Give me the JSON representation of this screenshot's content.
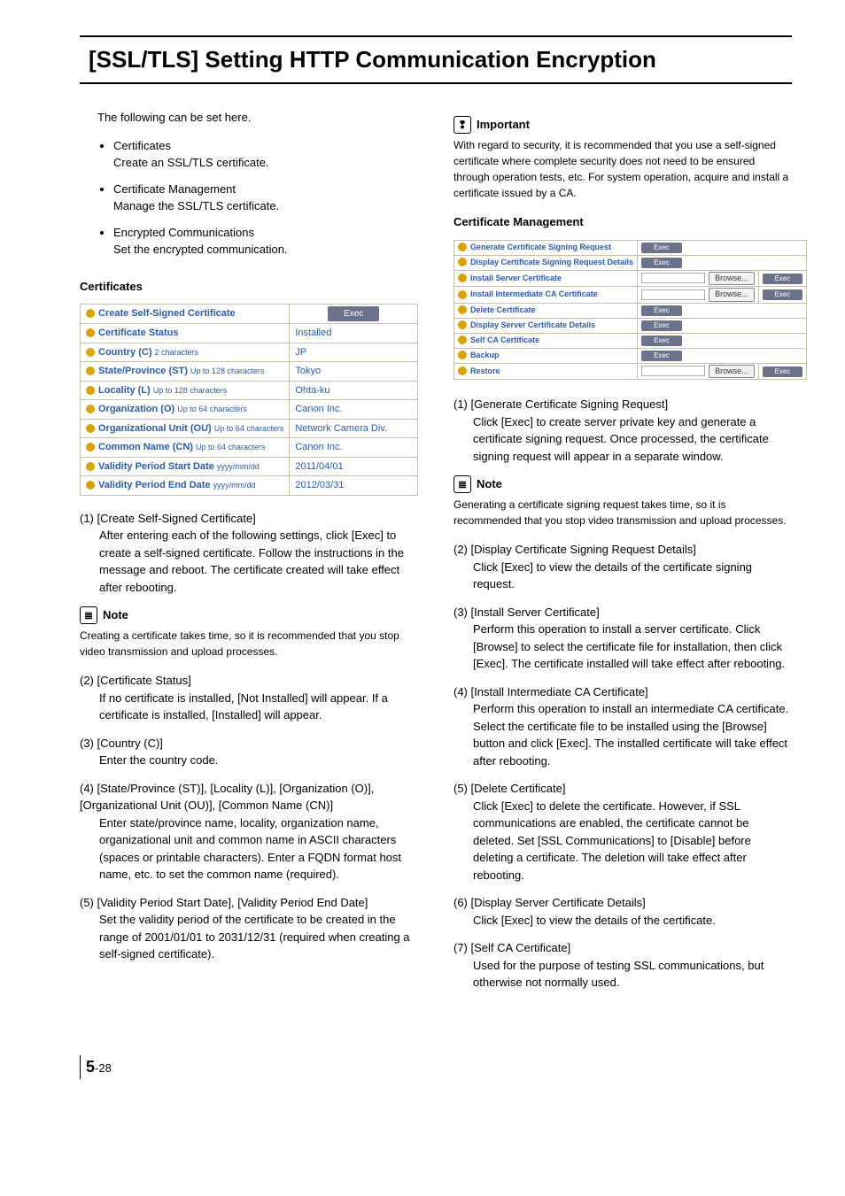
{
  "title": "[SSL/TLS] Setting HTTP Communication Encryption",
  "intro": "The following can be set here.",
  "bullets": [
    {
      "title": "Certificates",
      "desc": "Create an SSL/TLS certificate."
    },
    {
      "title": "Certificate Management",
      "desc": "Manage the SSL/TLS certificate."
    },
    {
      "title": "Encrypted Communications",
      "desc": "Set the encrypted communication."
    }
  ],
  "cert_heading": "Certificates",
  "cert_table": [
    {
      "label": "Create Self-Signed Certificate",
      "sub": "",
      "val_type": "exec",
      "val": "Exec"
    },
    {
      "label": "Certificate Status",
      "sub": "",
      "val_type": "text",
      "val": "Installed"
    },
    {
      "label": "Country (C)",
      "sub": "2 characters",
      "val_type": "text",
      "val": "JP"
    },
    {
      "label": "State/Province (ST)",
      "sub": "Up to 128 characters",
      "val_type": "text",
      "val": "Tokyo"
    },
    {
      "label": "Locality (L)",
      "sub": "Up to 128 characters",
      "val_type": "text",
      "val": "Ohta-ku"
    },
    {
      "label": "Organization (O)",
      "sub": "Up to 64 characters",
      "val_type": "text",
      "val": "Canon Inc."
    },
    {
      "label": "Organizational Unit (OU)",
      "sub": "Up to 64 characters",
      "val_type": "text",
      "val": "Network Camera Div."
    },
    {
      "label": "Common Name (CN)",
      "sub": "Up to 64 characters",
      "val_type": "text",
      "val": "Canon Inc."
    },
    {
      "label": "Validity Period Start Date",
      "sub": "yyyy/mm/dd",
      "val_type": "text",
      "val": "2011/04/01"
    },
    {
      "label": "Validity Period End Date",
      "sub": "yyyy/mm/dd",
      "val_type": "text",
      "val": "2012/03/31"
    }
  ],
  "left_items": [
    {
      "h": "(1) [Create Self-Signed Certificate]",
      "b": "After entering each of the following settings, click [Exec] to create a self-signed certificate. Follow the instructions in the message and reboot. The certificate created will take effect after rebooting."
    }
  ],
  "note1": {
    "title": "Note",
    "body": "Creating a certificate takes time, so it is recommended that you stop video transmission and upload processes."
  },
  "left_items2": [
    {
      "h": "(2) [Certificate Status]",
      "b": "If no certificate is installed, [Not Installed] will appear. If a certificate is installed, [Installed] will appear."
    },
    {
      "h": "(3) [Country (C)]",
      "b": "Enter the country code."
    },
    {
      "h": "(4) [State/Province (ST)], [Locality (L)], [Organization (O)], [Organizational Unit (OU)], [Common Name (CN)]",
      "b": "Enter state/province name, locality, organization name, organizational unit and common name in ASCII characters (spaces or printable characters). Enter a FQDN format host name, etc. to set the common name (required)."
    },
    {
      "h": "(5) [Validity Period Start Date], [Validity Period End Date]",
      "b": "Set the validity period of the certificate to be created in the range of 2001/01/01 to 2031/12/31 (required when creating a self-signed certificate)."
    }
  ],
  "important": {
    "title": "Important",
    "body": "With regard to security, it is recommended that you use a self-signed certificate where complete security does not need to be ensured through operation tests, etc. For system operation, acquire and install a certificate issued by a CA."
  },
  "mgmt_heading": "Certificate Management",
  "mgmt_rows": [
    {
      "label": "Generate Certificate Signing Request",
      "type": "exec"
    },
    {
      "label": "Display Certificate Signing Request Details",
      "type": "exec"
    },
    {
      "label": "Install Server Certificate",
      "type": "browse_exec"
    },
    {
      "label": "Install Intermediate CA Certificate",
      "type": "browse_exec"
    },
    {
      "label": "Delete Certificate",
      "type": "exec"
    },
    {
      "label": "Display Server Certificate Details",
      "type": "exec"
    },
    {
      "label": "Self CA Certificate",
      "type": "exec"
    },
    {
      "label": "Backup",
      "type": "exec"
    },
    {
      "label": "Restore",
      "type": "browse_exec"
    }
  ],
  "btn_labels": {
    "exec": "Exec",
    "browse": "Browse..."
  },
  "right_items1": [
    {
      "h": "(1) [Generate Certificate Signing Request]",
      "b": "Click [Exec] to create server private key and generate a certificate signing request. Once processed, the certificate signing request will appear in a separate window."
    }
  ],
  "note2": {
    "title": "Note",
    "body": "Generating a certificate signing request takes time, so it is recommended that you stop video transmission and upload processes."
  },
  "right_items2": [
    {
      "h": "(2) [Display Certificate Signing Request Details]",
      "b": "Click [Exec] to view the details of the certificate signing request."
    },
    {
      "h": "(3) [Install Server Certificate]",
      "b": "Perform this operation to install a server certificate. Click [Browse] to select the certificate file for installation, then click [Exec]. The certificate installed will take effect after rebooting."
    },
    {
      "h": "(4) [Install Intermediate CA Certificate]",
      "b": "Perform this operation to install an intermediate CA certificate. Select the certificate file to be installed using the [Browse] button and click [Exec]. The installed certificate will take effect after rebooting."
    },
    {
      "h": "(5) [Delete Certificate]",
      "b": "Click [Exec] to delete the certificate. However, if SSL communications are enabled, the certificate cannot be deleted. Set [SSL Communications] to [Disable] before deleting a certificate. The deletion will take effect after rebooting."
    },
    {
      "h": "(6) [Display Server Certificate Details]",
      "b": "Click [Exec] to view the details of the certificate."
    },
    {
      "h": "(7) [Self CA Certificate]",
      "b": "Used for the purpose of testing SSL communications, but otherwise not normally used."
    }
  ],
  "footer": {
    "chapter": "5",
    "page": "-28"
  }
}
